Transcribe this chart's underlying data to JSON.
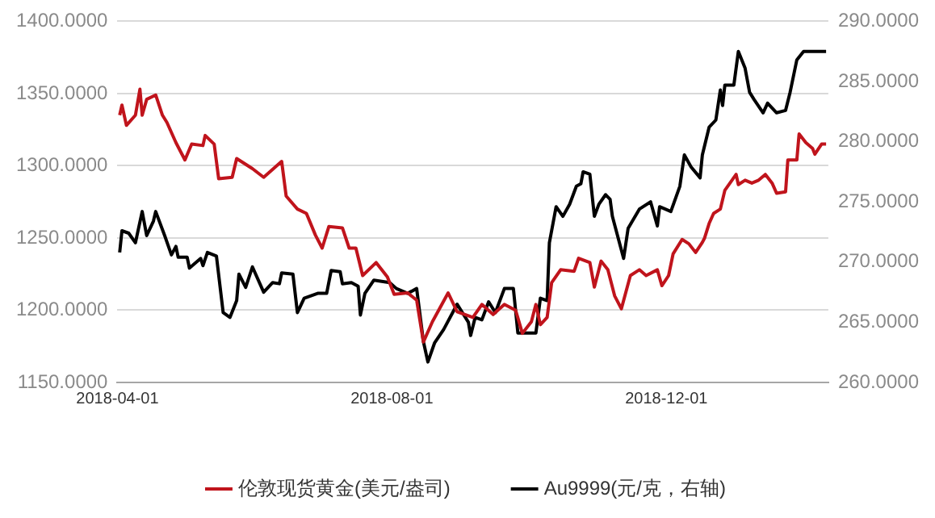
{
  "chart_data": {
    "type": "line",
    "xlim": [
      "2018-04-01",
      "2019-02-11"
    ],
    "xticks": [
      "2018-04-01",
      "2018-08-01",
      "2018-12-01"
    ],
    "ylim": [
      1150,
      1400
    ],
    "yticks": [
      {
        "value": 1150,
        "label": "1150.0000"
      },
      {
        "value": 1200,
        "label": "1200.0000"
      },
      {
        "value": 1250,
        "label": "1250.0000"
      },
      {
        "value": 1300,
        "label": "1300.0000"
      },
      {
        "value": 1350,
        "label": "1350.0000"
      },
      {
        "value": 1400,
        "label": "1400.0000"
      }
    ],
    "y2lim": [
      260,
      290
    ],
    "y2ticks": [
      {
        "value": 260,
        "label": "260.0000"
      },
      {
        "value": 265,
        "label": "265.0000"
      },
      {
        "value": 270,
        "label": "270.0000"
      },
      {
        "value": 275,
        "label": "275.0000"
      },
      {
        "value": 280,
        "label": "280.0000"
      },
      {
        "value": 285,
        "label": "285.0000"
      },
      {
        "value": 290,
        "label": "290.0000"
      }
    ],
    "grid": "y",
    "legend": "bottom",
    "marker": "none",
    "line_style": "solid",
    "series": [
      {
        "name": "伦敦现货黄金(美元/盎司)",
        "color": "#c0141c",
        "x": [
          "2018-04-02",
          "2018-04-03",
          "2018-04-05",
          "2018-04-09",
          "2018-04-11",
          "2018-04-12",
          "2018-04-14",
          "2018-04-18",
          "2018-04-21",
          "2018-04-23",
          "2018-04-27",
          "2018-05-01",
          "2018-05-04",
          "2018-05-09",
          "2018-05-10",
          "2018-05-14",
          "2018-05-16",
          "2018-05-22",
          "2018-05-24",
          "2018-05-31",
          "2018-06-05",
          "2018-06-13",
          "2018-06-15",
          "2018-06-20",
          "2018-06-24",
          "2018-06-28",
          "2018-07-01",
          "2018-07-04",
          "2018-07-10",
          "2018-07-13",
          "2018-07-16",
          "2018-07-19",
          "2018-07-25",
          "2018-07-30",
          "2018-08-02",
          "2018-08-08",
          "2018-08-12",
          "2018-08-15",
          "2018-08-19",
          "2018-08-26",
          "2018-08-30",
          "2018-09-06",
          "2018-09-10",
          "2018-09-15",
          "2018-09-20",
          "2018-09-25",
          "2018-09-28",
          "2018-10-02",
          "2018-10-04",
          "2018-10-06",
          "2018-10-09",
          "2018-10-11",
          "2018-10-15",
          "2018-10-21",
          "2018-10-23",
          "2018-10-28",
          "2018-10-30",
          "2018-11-02",
          "2018-11-05",
          "2018-11-08",
          "2018-11-11",
          "2018-11-15",
          "2018-11-19",
          "2018-11-22",
          "2018-11-27",
          "2018-11-29",
          "2018-12-02",
          "2018-12-04",
          "2018-12-08",
          "2018-12-11",
          "2018-12-14",
          "2018-12-17",
          "2018-12-18",
          "2018-12-20",
          "2018-12-22",
          "2018-12-25",
          "2018-12-27",
          "2019-01-01",
          "2019-01-02",
          "2019-01-05",
          "2019-01-08",
          "2019-01-11",
          "2019-01-14",
          "2019-01-17",
          "2019-01-19",
          "2019-01-23",
          "2019-01-24",
          "2019-01-28",
          "2019-01-29",
          "2019-02-01",
          "2019-02-04",
          "2019-02-05",
          "2019-02-08",
          "2019-02-10"
        ],
        "values": [
          1335,
          1342,
          1328,
          1335,
          1353,
          1335,
          1346,
          1349,
          1335,
          1330,
          1316,
          1304,
          1315,
          1314,
          1321,
          1315,
          1291,
          1292,
          1305,
          1298,
          1292,
          1303,
          1279,
          1270,
          1267,
          1252,
          1243,
          1258,
          1257,
          1243,
          1243,
          1224,
          1233,
          1223,
          1211,
          1212,
          1207,
          1178,
          1192,
          1212,
          1199,
          1195,
          1204,
          1197,
          1204,
          1200,
          1184,
          1192,
          1204,
          1190,
          1195,
          1219,
          1228,
          1227,
          1236,
          1233,
          1216,
          1234,
          1228,
          1210,
          1201,
          1224,
          1228,
          1224,
          1228,
          1217,
          1224,
          1239,
          1249,
          1246,
          1240,
          1247,
          1250,
          1260,
          1267,
          1270,
          1283,
          1294,
          1287,
          1290,
          1288,
          1290,
          1294,
          1288,
          1281,
          1282,
          1304,
          1304,
          1322,
          1316,
          1312,
          1308,
          1315,
          1315
        ]
      },
      {
        "name": "Au9999(元/克，右轴)",
        "color": "#000000",
        "axis": "y2",
        "x": [
          "2018-04-02",
          "2018-04-03",
          "2018-04-06",
          "2018-04-09",
          "2018-04-12",
          "2018-04-14",
          "2018-04-17",
          "2018-04-18",
          "2018-04-22",
          "2018-04-25",
          "2018-04-27",
          "2018-04-28",
          "2018-05-02",
          "2018-05-03",
          "2018-05-08",
          "2018-05-09",
          "2018-05-11",
          "2018-05-15",
          "2018-05-18",
          "2018-05-21",
          "2018-05-24",
          "2018-05-25",
          "2018-05-28",
          "2018-05-31",
          "2018-06-05",
          "2018-06-09",
          "2018-06-12",
          "2018-06-13",
          "2018-06-18",
          "2018-06-20",
          "2018-06-23",
          "2018-06-29",
          "2018-07-03",
          "2018-07-05",
          "2018-07-09",
          "2018-07-10",
          "2018-07-14",
          "2018-07-17",
          "2018-07-18",
          "2018-07-20",
          "2018-07-24",
          "2018-07-31",
          "2018-08-03",
          "2018-08-08",
          "2018-08-12",
          "2018-08-15",
          "2018-08-17",
          "2018-08-20",
          "2018-08-24",
          "2018-08-30",
          "2018-09-04",
          "2018-09-05",
          "2018-09-07",
          "2018-09-10",
          "2018-09-13",
          "2018-09-16",
          "2018-09-20",
          "2018-09-24",
          "2018-09-26",
          "2018-10-04",
          "2018-10-06",
          "2018-10-09",
          "2018-10-10",
          "2018-10-13",
          "2018-10-16",
          "2018-10-19",
          "2018-10-22",
          "2018-10-24",
          "2018-10-25",
          "2018-10-28",
          "2018-10-30",
          "2018-11-01",
          "2018-11-04",
          "2018-11-06",
          "2018-11-07",
          "2018-11-12",
          "2018-11-14",
          "2018-11-19",
          "2018-11-24",
          "2018-11-27",
          "2018-11-28",
          "2018-12-03",
          "2018-12-07",
          "2018-12-09",
          "2018-12-12",
          "2018-12-16",
          "2018-12-17",
          "2018-12-20",
          "2018-12-23",
          "2018-12-25",
          "2018-12-26",
          "2018-12-27",
          "2018-12-31",
          "2019-01-02",
          "2019-01-05",
          "2019-01-07",
          "2019-01-09",
          "2019-01-13",
          "2019-01-15",
          "2019-01-19",
          "2019-01-23",
          "2019-01-25",
          "2019-01-28",
          "2019-01-31",
          "2019-02-10"
        ],
        "values": [
          270.8,
          272.6,
          272.4,
          271.6,
          274.2,
          272.2,
          273.4,
          274.2,
          272.2,
          270.6,
          271.3,
          270.4,
          270.4,
          269.5,
          270.3,
          269.7,
          270.8,
          270.5,
          265.8,
          265.4,
          266.8,
          269.0,
          267.9,
          269.6,
          267.5,
          268.3,
          268.2,
          269.1,
          269.0,
          265.8,
          267.0,
          267.4,
          267.4,
          269.3,
          269.2,
          268.2,
          268.3,
          268.0,
          265.6,
          267.4,
          268.5,
          268.3,
          267.8,
          267.4,
          267.8,
          263.4,
          261.7,
          263.3,
          264.4,
          266.5,
          265.0,
          263.9,
          265.4,
          265.2,
          266.7,
          265.8,
          267.8,
          267.8,
          264.1,
          264.1,
          267.0,
          266.8,
          271.6,
          274.6,
          273.8,
          274.8,
          276.3,
          276.5,
          277.5,
          277.3,
          273.8,
          274.8,
          275.6,
          275.2,
          273.8,
          270.3,
          272.8,
          274.4,
          275.0,
          273.0,
          274.6,
          274.2,
          276.3,
          278.9,
          277.9,
          277.0,
          278.9,
          281.2,
          281.8,
          284.3,
          283.0,
          284.7,
          284.7,
          287.5,
          286.1,
          284.1,
          283.5,
          282.4,
          283.2,
          282.4,
          282.6,
          284.1,
          286.8,
          287.5,
          287.5
        ]
      }
    ]
  }
}
